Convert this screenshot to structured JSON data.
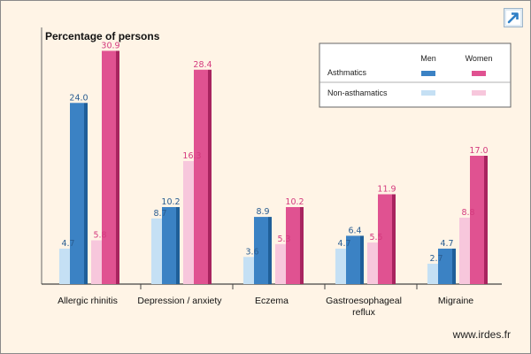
{
  "site_label": "www.irdes.fr",
  "chart_data": {
    "type": "bar",
    "title": "Percentage of persons",
    "categories": [
      "Allergic rhinitis",
      "Depression / anxiety",
      "Eczema",
      "Gastroesophageal reflux",
      "Migraine"
    ],
    "category_lines": [
      [
        "Allergic rhinitis"
      ],
      [
        "Depression / anxiety"
      ],
      [
        "Eczema"
      ],
      [
        "Gastroesophageal",
        "reflux"
      ],
      [
        "Migraine"
      ]
    ],
    "legend": {
      "position": "top-right",
      "columns": [
        "Men",
        "Women"
      ],
      "rows": [
        "Asthmatics",
        "Non-asthamatics"
      ]
    },
    "series": [
      {
        "group": "Non-asthamatics",
        "sex": "Men",
        "values": [
          4.7,
          8.7,
          3.6,
          4.7,
          2.7
        ],
        "color": "#c5e0f4",
        "edge": "#a6c9e6"
      },
      {
        "group": "Asthmatics",
        "sex": "Men",
        "values": [
          24.0,
          10.2,
          8.9,
          6.4,
          4.7
        ],
        "color": "#3b82c4",
        "edge": "#1f5f99"
      },
      {
        "group": "Non-asthamatics",
        "sex": "Women",
        "values": [
          5.8,
          16.3,
          5.3,
          5.5,
          8.8
        ],
        "color": "#f7c7dc",
        "edge": "#e6a6c4"
      },
      {
        "group": "Asthmatics",
        "sex": "Women",
        "values": [
          30.9,
          28.4,
          10.2,
          11.9,
          17.0
        ],
        "color": "#e05291",
        "edge": "#a8245f"
      }
    ],
    "label_colors": {
      "Men": "#2a5d91",
      "Women": "#d43a7e"
    },
    "ylim": [
      0,
      34
    ],
    "grid": false
  }
}
